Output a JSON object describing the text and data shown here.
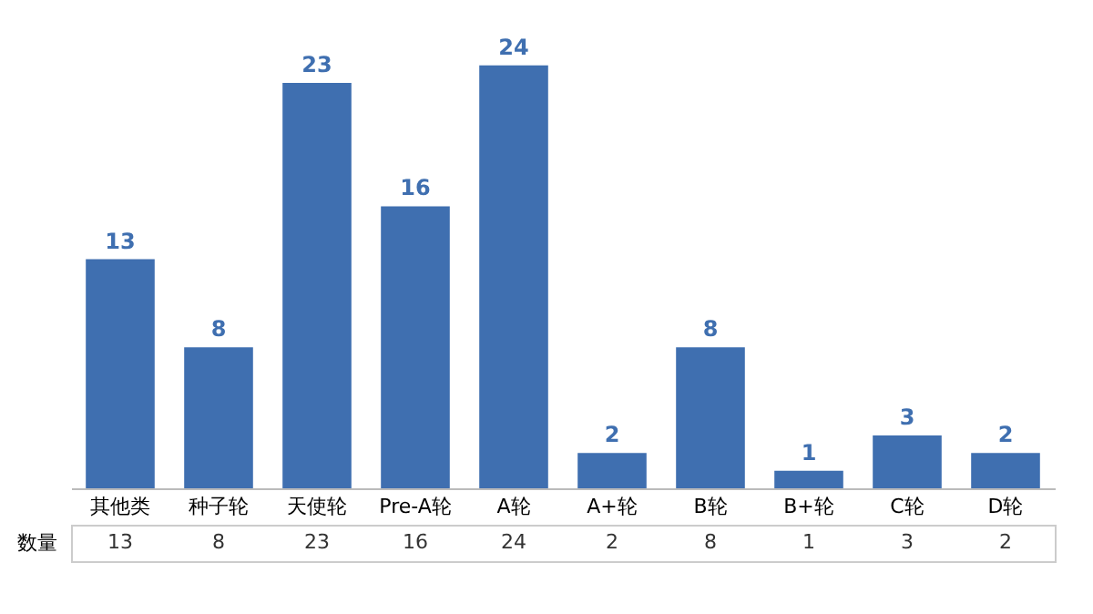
{
  "chart_data": {
    "type": "bar",
    "categories": [
      "其他类",
      "种子轮",
      "天使轮",
      "Pre-A轮",
      "A轮",
      "A+轮",
      "B轮",
      "B+轮",
      "C轮",
      "D轮"
    ],
    "series": [
      {
        "name": "数量",
        "color": "#3f6fb0",
        "values": [
          13,
          8,
          23,
          16,
          24,
          2,
          8,
          1,
          3,
          2
        ]
      }
    ],
    "totals": [
      "13",
      "8",
      "23",
      "16",
      "24",
      "2",
      "8",
      "1",
      "3",
      "2"
    ],
    "tick_labels": "x",
    "data_labels": true
  }
}
